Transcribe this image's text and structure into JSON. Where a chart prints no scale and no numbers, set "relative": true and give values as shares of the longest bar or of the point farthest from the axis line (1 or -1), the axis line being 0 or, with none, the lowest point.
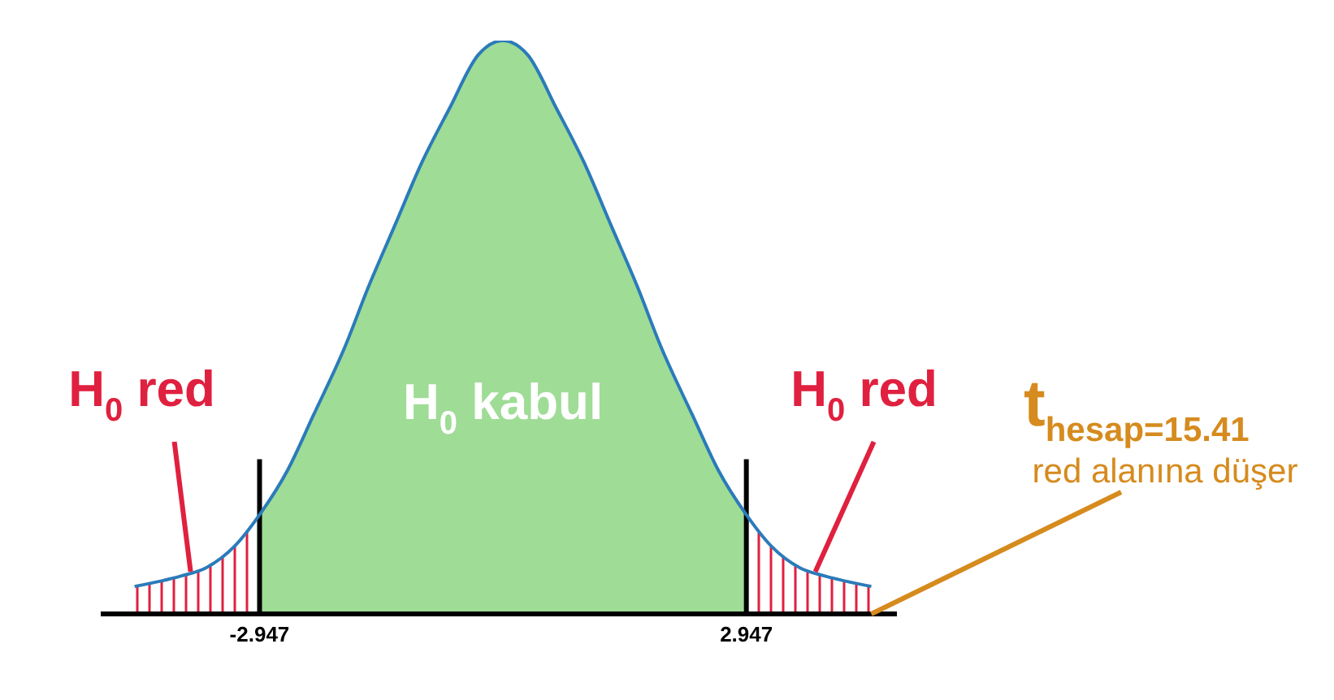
{
  "chart_data": {
    "type": "line",
    "relative": true,
    "series": [
      {
        "color": "#2b7bba",
        "x": [
          -4.46,
          -3.9,
          -3.6,
          -3.25,
          -2.947,
          -2.61,
          -2.3,
          -1.91,
          -1.63,
          -1.32,
          -0.98,
          -0.65,
          -0.3,
          0,
          0.3,
          0.65,
          0.98,
          1.32,
          1.63,
          1.91,
          2.3,
          2.61,
          2.947,
          3.25,
          3.6,
          3.9,
          4.46
        ],
        "values": [
          0.048,
          0.066,
          0.08,
          0.118,
          0.173,
          0.25,
          0.345,
          0.467,
          0.57,
          0.674,
          0.788,
          0.881,
          0.975,
          1,
          0.975,
          0.881,
          0.788,
          0.674,
          0.57,
          0.467,
          0.345,
          0.25,
          0.173,
          0.118,
          0.08,
          0.066,
          0.048
        ]
      },
      {
        "type": "area",
        "name": "H$_{0}$ red",
        "color": "#e0203f",
        "x": [
          -4.46,
          -3.9,
          -3.6,
          -3.25,
          -2.947
        ],
        "values": [
          0.048,
          0.066,
          0.08,
          0.118,
          0.173
        ]
      },
      {
        "type": "area",
        "name": "H$_{0}$ kabul",
        "color": "#9fdc96",
        "x": [
          -2.947,
          -2.61,
          -2.3,
          -1.91,
          -1.63,
          -1.32,
          -0.98,
          -0.65,
          -0.3,
          0,
          0.3,
          0.65,
          0.98,
          1.32,
          1.63,
          1.91,
          2.3,
          2.61,
          2.947
        ],
        "values": [
          0.173,
          0.25,
          0.345,
          0.467,
          0.57,
          0.674,
          0.788,
          0.881,
          0.975,
          1,
          0.975,
          0.881,
          0.788,
          0.674,
          0.57,
          0.467,
          0.345,
          0.25,
          0.173
        ]
      },
      {
        "type": "area",
        "name": "H$_{0}$ red",
        "color": "#e0203f",
        "x": [
          2.947,
          3.25,
          3.6,
          3.9,
          4.46
        ],
        "values": [
          0.173,
          0.118,
          0.08,
          0.066,
          0.048
        ]
      }
    ],
    "xlim": [
      -4.87,
      4.77
    ],
    "xticks": [
      -2.947,
      2.947
    ],
    "ref_lines": [
      {
        "axis": "x",
        "value": -2.947,
        "color": "#000000"
      },
      {
        "axis": "x",
        "value": 2.947,
        "color": "#000000"
      }
    ],
    "annotations": [
      "t$_{hesap=15.41}$\nred alanına düşer"
    ]
  }
}
